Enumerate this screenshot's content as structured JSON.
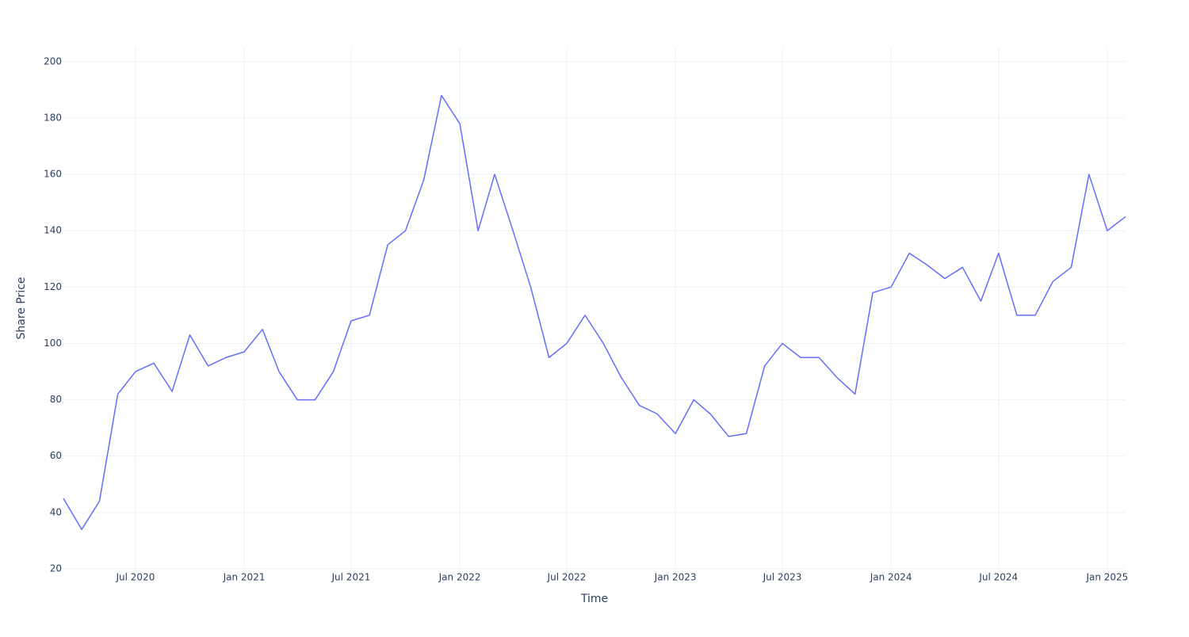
{
  "chart_data": {
    "type": "line",
    "xlabel": "Time",
    "ylabel": "Share Price",
    "x": [
      "2020-03",
      "2020-04",
      "2020-05",
      "2020-06",
      "2020-07",
      "2020-08",
      "2020-09",
      "2020-10",
      "2020-11",
      "2020-12",
      "2021-01",
      "2021-02",
      "2021-03",
      "2021-04",
      "2021-05",
      "2021-06",
      "2021-07",
      "2021-08",
      "2021-09",
      "2021-10",
      "2021-11",
      "2021-12",
      "2022-01",
      "2022-02",
      "2022-03",
      "2022-04",
      "2022-05",
      "2022-06",
      "2022-07",
      "2022-08",
      "2022-09",
      "2022-10",
      "2022-11",
      "2022-12",
      "2023-01",
      "2023-02",
      "2023-03",
      "2023-04",
      "2023-05",
      "2023-06",
      "2023-07",
      "2023-08",
      "2023-09",
      "2023-10",
      "2023-11",
      "2023-12",
      "2024-01",
      "2024-02",
      "2024-03",
      "2024-04",
      "2024-05",
      "2024-06",
      "2024-07",
      "2024-08",
      "2024-09",
      "2024-10",
      "2024-11",
      "2024-12",
      "2025-01",
      "2025-02"
    ],
    "series": [
      {
        "name": "Share Price",
        "color": "#636efa",
        "values": [
          45,
          34,
          44,
          82,
          90,
          93,
          83,
          103,
          92,
          95,
          97,
          105,
          90,
          80,
          80,
          90,
          108,
          110,
          135,
          140,
          158,
          188,
          178,
          140,
          160,
          140,
          120,
          95,
          100,
          110,
          100,
          88,
          78,
          75,
          68,
          80,
          75,
          67,
          68,
          92,
          100,
          95,
          95,
          88,
          82,
          118,
          120,
          132,
          128,
          123,
          127,
          115,
          132,
          110,
          110,
          122,
          127,
          160,
          140,
          145
        ]
      }
    ],
    "xlim": [
      "2020-03",
      "2025-02"
    ],
    "xticks": [
      {
        "value": "2020-07",
        "label": "Jul 2020"
      },
      {
        "value": "2021-01",
        "label": "Jan 2021"
      },
      {
        "value": "2021-07",
        "label": "Jul 2021"
      },
      {
        "value": "2022-01",
        "label": "Jan 2022"
      },
      {
        "value": "2022-07",
        "label": "Jul 2022"
      },
      {
        "value": "2023-01",
        "label": "Jan 2023"
      },
      {
        "value": "2023-07",
        "label": "Jul 2023"
      },
      {
        "value": "2024-01",
        "label": "Jan 2024"
      },
      {
        "value": "2024-07",
        "label": "Jul 2024"
      },
      {
        "value": "2025-01",
        "label": "Jan 2025"
      }
    ],
    "ylim": [
      20,
      205
    ],
    "yticks": [
      20,
      40,
      60,
      80,
      100,
      120,
      140,
      160,
      180,
      200
    ],
    "grid": true
  }
}
